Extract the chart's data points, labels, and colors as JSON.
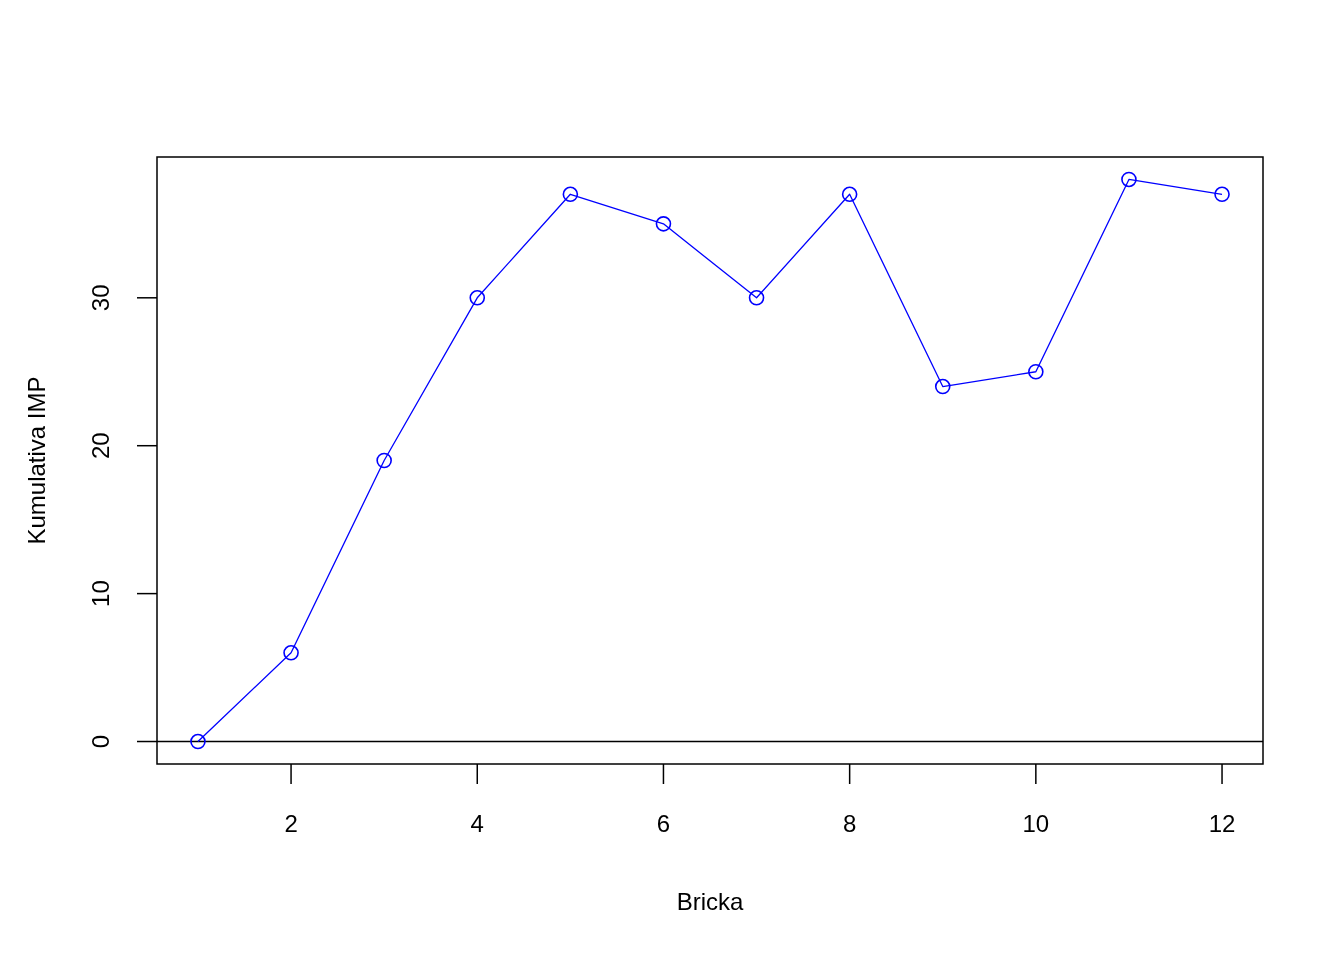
{
  "chart_data": {
    "type": "line",
    "xlabel": "Bricka",
    "ylabel": "Kumulativa IMP",
    "x": [
      1,
      2,
      3,
      4,
      5,
      6,
      7,
      8,
      9,
      10,
      11,
      12
    ],
    "series": [
      {
        "color": "#0000ff",
        "values": [
          0,
          6,
          19,
          30,
          37,
          35,
          30,
          37,
          24,
          25,
          38,
          37
        ]
      }
    ],
    "xlim": [
      0.56,
      12.44
    ],
    "xticks": [
      2,
      4,
      6,
      8,
      10,
      12
    ],
    "ylim": [
      -1.52,
      39.52
    ],
    "yticks": [
      0,
      10,
      20,
      30
    ],
    "ref_lines": [
      {
        "axis": "y",
        "value": 0,
        "color": "#000000"
      }
    ],
    "marker": "circle",
    "line_style": "solid"
  }
}
